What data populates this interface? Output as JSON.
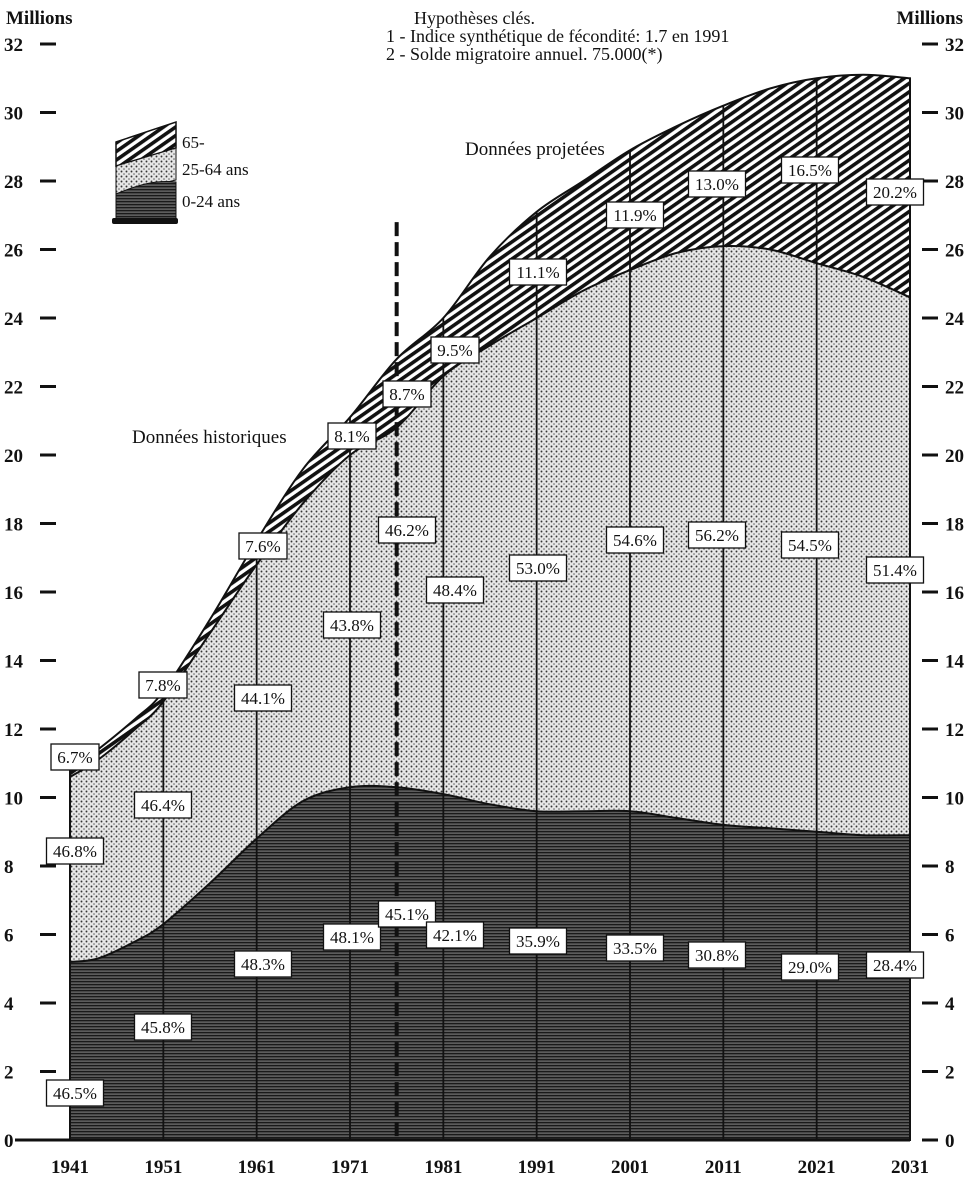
{
  "chart_data": {
    "type": "area",
    "stacked": true,
    "ylabel_left": "Millions",
    "ylabel_right": "Millions",
    "ylim": [
      0,
      32
    ],
    "y_ticks": [
      0,
      2,
      4,
      6,
      8,
      10,
      12,
      14,
      16,
      18,
      20,
      22,
      24,
      26,
      28,
      30,
      32
    ],
    "x_ticks": [
      "1941",
      "1951",
      "1961",
      "1971",
      "1981",
      "1991",
      "2001",
      "2011",
      "2021",
      "2031"
    ],
    "xlim": [
      1941,
      2031
    ],
    "notes_title": "Hypothèses clés.",
    "notes": [
      "1 - Indice synthétique de fécondité: 1.7 en 1991",
      "2 - Solde migratoire annuel. 75.000(*)"
    ],
    "annotations": {
      "historical": "Données historiques",
      "projected": "Données projetées",
      "divider_year": 1976
    },
    "legend": [
      {
        "label": "65-",
        "pattern": "stripe-diag"
      },
      {
        "label": "25-64 ans",
        "pattern": "dots"
      },
      {
        "label": "0-24 ans",
        "pattern": "stripe-horiz"
      }
    ],
    "series_boundaries": {
      "x": [
        1941,
        1944,
        1948,
        1951,
        1956,
        1961,
        1966,
        1971,
        1976,
        1981,
        1986,
        1991,
        1996,
        2001,
        2006,
        2011,
        2016,
        2021,
        2026,
        2031
      ],
      "young_top": [
        5.2,
        5.3,
        5.8,
        6.3,
        7.5,
        8.8,
        9.9,
        10.3,
        10.3,
        10.1,
        9.8,
        9.6,
        9.6,
        9.6,
        9.4,
        9.2,
        9.1,
        9.0,
        8.9,
        8.9
      ],
      "adult_top": [
        10.6,
        11.1,
        12.0,
        12.8,
        14.8,
        16.8,
        18.6,
        20.0,
        20.8,
        22.3,
        23.2,
        24.0,
        24.8,
        25.4,
        25.9,
        26.1,
        26.0,
        25.6,
        25.2,
        24.6
      ],
      "total": [
        10.8,
        11.4,
        12.3,
        13.1,
        15.2,
        17.5,
        19.6,
        21.1,
        22.8,
        24.0,
        25.8,
        27.1,
        28.0,
        28.9,
        29.6,
        30.2,
        30.7,
        31.0,
        31.1,
        31.0
      ]
    },
    "series": [
      {
        "name": "65-",
        "values": [
          "6.7%",
          "7.8%",
          "7.6%",
          "8.1%",
          "8.7%",
          "9.5%",
          "11.1%",
          "11.9%",
          "13.0%",
          "16.5%",
          "20.2%"
        ]
      },
      {
        "name": "25-64 ans",
        "values": [
          "46.8%",
          "46.4%",
          "44.1%",
          "43.8%",
          "46.2%",
          "48.4%",
          "53.0%",
          "54.6%",
          "56.2%",
          "54.5%",
          "51.4%"
        ]
      },
      {
        "name": "0-24 ans",
        "values": [
          "46.5%",
          "45.8%",
          "48.3%",
          "48.1%",
          "45.1%",
          "42.1%",
          "35.9%",
          "33.5%",
          "30.8%",
          "29.0%",
          "28.4%"
        ]
      }
    ]
  }
}
